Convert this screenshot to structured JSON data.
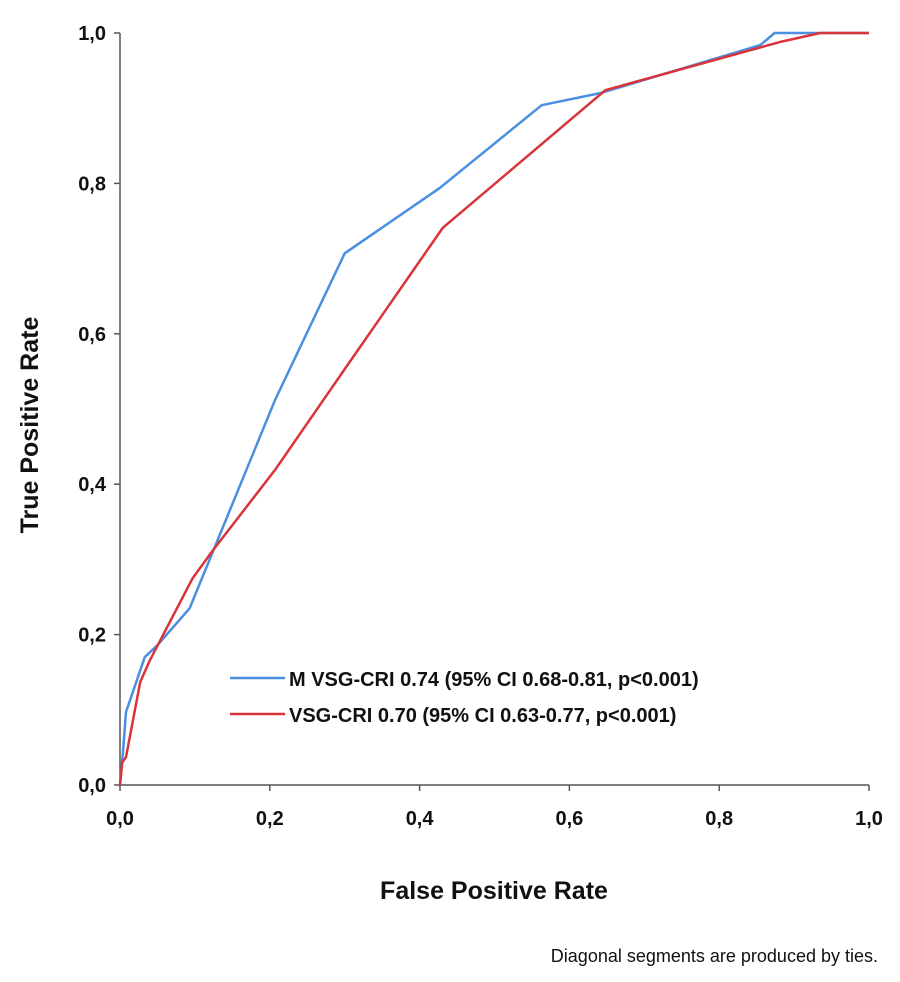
{
  "chart_data": {
    "type": "line",
    "title": "",
    "xlabel": "False Positive Rate",
    "ylabel": "True Positive Rate",
    "xlim": [
      0,
      1
    ],
    "ylim": [
      0,
      1
    ],
    "grid": false,
    "x_ticks": [
      "0,0",
      "0,2",
      "0,4",
      "0,6",
      "0,8",
      "1,0"
    ],
    "y_ticks": [
      "0,0",
      "0,2",
      "0,4",
      "0,6",
      "0,8",
      "1,0"
    ],
    "legend_placement": "bottom-right",
    "footnote": "Diagonal segments are produced by ties.",
    "series": [
      {
        "name": "M VSG-CRI 0.74 (95% CI 0.68-0.81, p<0.001)",
        "color": "#4a8fe0",
        "x": [
          0,
          0.004,
          0.008,
          0.033,
          0.05,
          0.093,
          0.207,
          0.3,
          0.427,
          0.563,
          0.641,
          0.855,
          0.874,
          1.0
        ],
        "y": [
          0,
          0.044,
          0.097,
          0.17,
          0.186,
          0.235,
          0.512,
          0.707,
          0.794,
          0.904,
          0.92,
          0.984,
          1.0,
          1.0
        ]
      },
      {
        "name": "VSG-CRI 0.70 (95% CI 0.63-0.77, p<0.001)",
        "color": "#d9343a",
        "x": [
          0,
          0.003,
          0.008,
          0.027,
          0.04,
          0.097,
          0.124,
          0.207,
          0.3,
          0.431,
          0.648,
          0.881,
          0.935,
          1.0
        ],
        "y": [
          0,
          0.03,
          0.037,
          0.137,
          0.166,
          0.275,
          0.312,
          0.419,
          0.553,
          0.741,
          0.924,
          0.988,
          1.0,
          1.0
        ]
      }
    ]
  }
}
